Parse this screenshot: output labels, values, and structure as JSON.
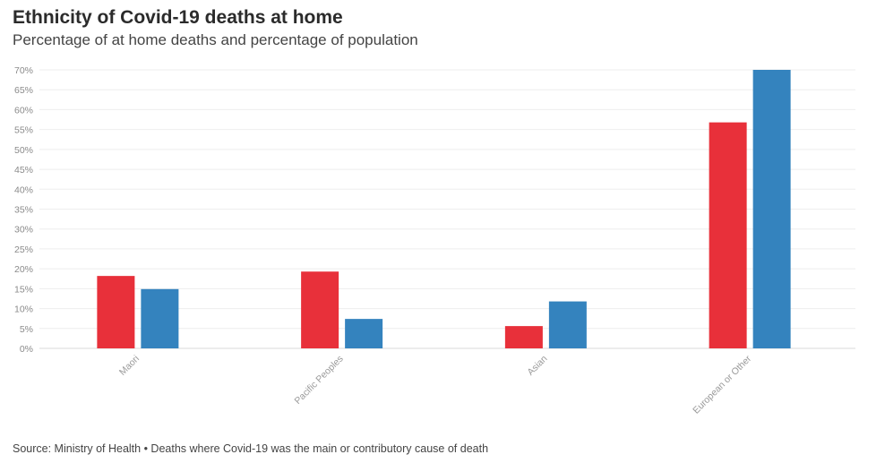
{
  "header": {
    "title": "Ethnicity of Covid-19 deaths at home",
    "subtitle": "Percentage of at home deaths and percentage of population"
  },
  "footer": {
    "source": "Source: Ministry of Health • Deaths where Covid-19 was the main or contributory cause of death"
  },
  "colors": {
    "series_1": "#e8303a",
    "series_2": "#3483be",
    "grid": "#eeeeee",
    "axis": "#d8d8d8"
  },
  "chart_data": {
    "type": "bar",
    "title": "Ethnicity of Covid-19 deaths at home",
    "subtitle": "Percentage of at home deaths and percentage of population",
    "xlabel": "",
    "ylabel": "",
    "categories": [
      "Maori",
      "Pacific Peoples",
      "Asian",
      "European or Other"
    ],
    "series": [
      {
        "values": [
          18.2,
          19.3,
          5.6,
          56.8
        ]
      },
      {
        "values": [
          14.9,
          7.4,
          11.8,
          70.0
        ]
      }
    ],
    "ylim": [
      0,
      70
    ],
    "yticks": [
      0,
      5,
      10,
      15,
      20,
      25,
      30,
      35,
      40,
      45,
      50,
      55,
      60,
      65,
      70
    ],
    "ytick_suffix": "%",
    "grid": true,
    "legend": "none"
  }
}
